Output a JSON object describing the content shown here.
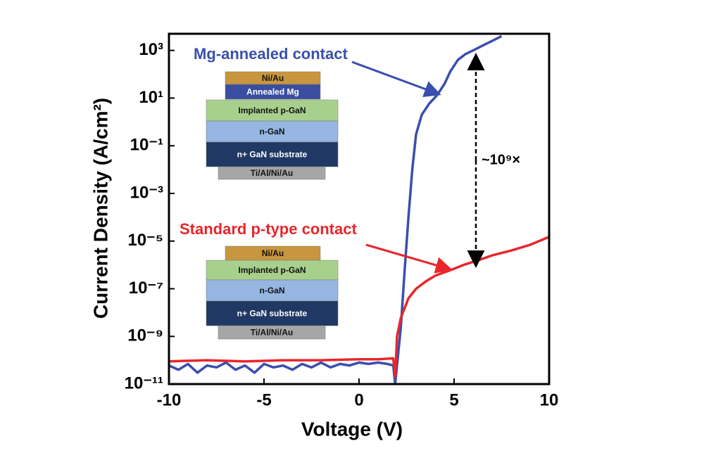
{
  "chart_data": {
    "type": "line",
    "log_y": true,
    "xlabel": "Voltage (V)",
    "ylabel": "Current Density (A/cm²)",
    "xlim": [
      -10,
      10
    ],
    "xticks": [
      -10,
      -5,
      0,
      5,
      10
    ],
    "ylim": [
      1e-11,
      5000
    ],
    "yticks": [
      {
        "value": 1e-11,
        "label": "10⁻¹¹"
      },
      {
        "value": 1e-09,
        "label": "10⁻⁹"
      },
      {
        "value": 1e-07,
        "label": "10⁻⁷"
      },
      {
        "value": 1e-05,
        "label": "10⁻⁵"
      },
      {
        "value": 0.001,
        "label": "10⁻³"
      },
      {
        "value": 0.1,
        "label": "10⁻¹"
      },
      {
        "value": 10,
        "label": "10¹"
      },
      {
        "value": 1000,
        "label": "10³"
      }
    ],
    "series": [
      {
        "name": "Mg-annealed contact",
        "color": "#3a4fad",
        "x": [
          -10,
          -9.5,
          -9,
          -8.5,
          -8,
          -7.5,
          -7,
          -6.5,
          -6,
          -5.5,
          -5,
          -4.5,
          -4,
          -3.5,
          -3,
          -2.5,
          -2,
          -1.5,
          -1,
          -0.5,
          0,
          0.5,
          1,
          1.5,
          1.8,
          1.9,
          2.2,
          2.4,
          2.6,
          2.8,
          3.0,
          3.3,
          3.7,
          4.1,
          4.5,
          4.8,
          5.2,
          5.6,
          6.0,
          6.5,
          7.0,
          7.5
        ],
        "values": [
          6e-11,
          4e-11,
          7e-11,
          3e-11,
          6e-11,
          5e-11,
          8e-11,
          4e-11,
          6e-11,
          3e-11,
          7e-11,
          5e-11,
          6e-11,
          4e-11,
          7e-11,
          5e-11,
          8e-11,
          5e-11,
          7e-11,
          6e-11,
          8e-11,
          7e-11,
          8e-11,
          7e-11,
          6e-11,
          1e-11,
          2.5e-09,
          6e-07,
          0.0001,
          0.01,
          0.3,
          2,
          6,
          13,
          40,
          130,
          400,
          700,
          1000,
          1600,
          2500,
          4000
        ]
      },
      {
        "name": "Standard p-type contact",
        "color": "#e8262a",
        "x": [
          -10,
          -8,
          -6,
          -4,
          -2,
          0,
          1,
          1.8,
          1.9,
          2.0,
          2.2,
          2.6,
          3.0,
          3.5,
          4.0,
          4.8,
          5.5,
          6.3,
          7.0,
          8.0,
          9.0,
          10
        ],
        "values": [
          9e-11,
          1e-10,
          9e-11,
          1e-10,
          1e-10,
          1.1e-10,
          1.1e-10,
          1.2e-10,
          2e-11,
          1e-09,
          6e-09,
          4e-08,
          1e-07,
          2e-07,
          3.5e-07,
          6e-07,
          1e-06,
          1.6e-06,
          2.5e-06,
          4e-06,
          7e-06,
          1.5e-05
        ]
      }
    ],
    "annotations": {
      "ratio": "~10⁹×"
    },
    "insets": [
      {
        "layers": [
          {
            "label": "Ni/Au",
            "color": "#c8963e"
          },
          {
            "label": "Annealed Mg",
            "color": "#3a4ea0"
          },
          {
            "label": "Implanted p-GaN",
            "color": "#a8d08d"
          },
          {
            "label": "n-GaN",
            "color": "#94b6e0"
          },
          {
            "label": "n+ GaN substrate",
            "color": "#1f3864"
          },
          {
            "label": "Ti/Al/Ni/Au",
            "color": "#a6a6a6"
          }
        ]
      },
      {
        "layers": [
          {
            "label": "Ni/Au",
            "color": "#c8963e"
          },
          {
            "label": "Implanted p-GaN",
            "color": "#a8d08d"
          },
          {
            "label": "n-GaN",
            "color": "#94b6e0"
          },
          {
            "label": "n+ GaN substrate",
            "color": "#1f3864"
          },
          {
            "label": "Ti/Al/Ni/Au",
            "color": "#a6a6a6"
          }
        ]
      }
    ]
  }
}
